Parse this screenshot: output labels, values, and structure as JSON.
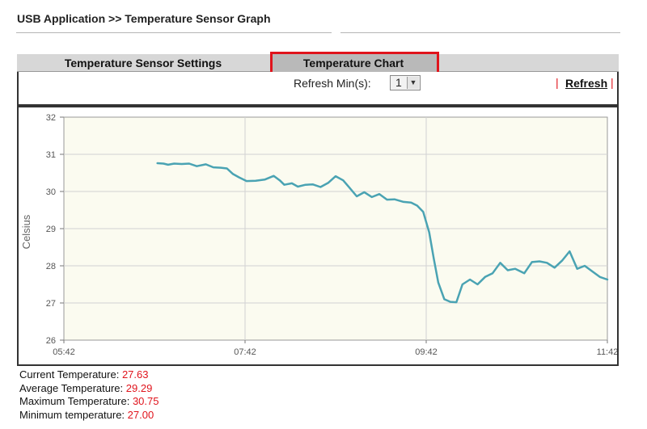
{
  "breadcrumb": "USB Application >> Temperature Sensor Graph",
  "tabs": [
    {
      "label": "Temperature Sensor Settings",
      "active": false
    },
    {
      "label": "Temperature Chart",
      "active": true
    }
  ],
  "controls": {
    "refresh_label": "Refresh Min(s):",
    "refresh_value": "1",
    "refresh_link": "Refresh",
    "pipe": "|"
  },
  "stats": {
    "current_label": "Current Temperature:",
    "current_value": "27.63",
    "average_label": "Average Temperature:",
    "average_value": "29.29",
    "maximum_label": "Maximum Temperature:",
    "maximum_value": "30.75",
    "minimum_label": "Minimum temperature:",
    "minimum_value": "27.00"
  },
  "colors": {
    "highlight": "#e0141c",
    "plot_background": "#fbfbf0",
    "line": "#4aa3b3",
    "value_text": "#e0141c"
  },
  "chart_data": {
    "type": "line",
    "title": "",
    "xlabel": "",
    "ylabel": "Celsius",
    "x_ticks": [
      "05:42",
      "07:42",
      "09:42",
      "11:42"
    ],
    "xlim": [
      "05:42",
      "11:42"
    ],
    "y_ticks": [
      26,
      27,
      28,
      29,
      30,
      31,
      32
    ],
    "ylim": [
      26,
      32
    ],
    "grid": "horizontal",
    "legend": "none",
    "series": [
      {
        "x": [
          "06:44",
          "06:48",
          "06:51",
          "06:55",
          "07:00",
          "07:05",
          "07:10",
          "07:16",
          "07:21",
          "07:26",
          "07:30",
          "07:34",
          "07:38",
          "07:43",
          "07:49",
          "07:55",
          "08:01",
          "08:05",
          "08:08",
          "08:13",
          "08:17",
          "08:22",
          "08:27",
          "08:32",
          "08:37",
          "08:42",
          "08:47",
          "08:51",
          "08:56",
          "09:01",
          "09:06",
          "09:11",
          "09:16",
          "09:21",
          "09:27",
          "09:32",
          "09:36",
          "09:40",
          "09:44",
          "09:47",
          "09:50",
          "09:54",
          "09:58",
          "10:02",
          "10:06",
          "10:11",
          "10:16",
          "10:21",
          "10:26",
          "10:31",
          "10:36",
          "10:41",
          "10:47",
          "10:52",
          "10:57",
          "11:02",
          "11:07",
          "11:12",
          "11:17",
          "11:22",
          "11:27",
          "11:32",
          "11:37",
          "11:42"
        ],
        "y": [
          30.76,
          30.75,
          30.72,
          30.75,
          30.74,
          30.75,
          30.68,
          30.73,
          30.65,
          30.64,
          30.62,
          30.47,
          30.38,
          30.28,
          30.29,
          30.32,
          30.42,
          30.3,
          30.18,
          30.22,
          30.13,
          30.18,
          30.19,
          30.12,
          30.23,
          30.41,
          30.3,
          30.11,
          29.87,
          29.98,
          29.85,
          29.93,
          29.78,
          29.79,
          29.72,
          29.7,
          29.62,
          29.45,
          28.9,
          28.2,
          27.55,
          27.1,
          27.03,
          27.02,
          27.5,
          27.63,
          27.5,
          27.7,
          27.8,
          28.08,
          27.88,
          27.92,
          27.8,
          28.1,
          28.12,
          28.08,
          27.95,
          28.14,
          28.39,
          27.92,
          28.0,
          27.85,
          27.7,
          27.63
        ]
      }
    ]
  }
}
